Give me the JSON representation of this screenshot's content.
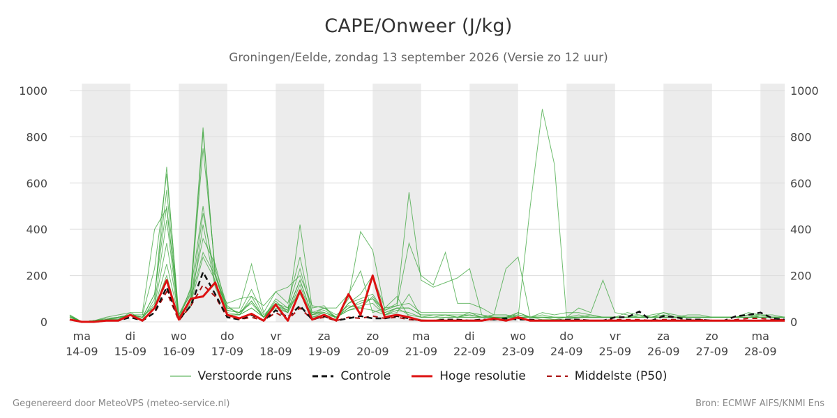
{
  "header": {
    "title": "CAPE/Onweer (J/kg)",
    "subtitle": "Groningen/Eelde, zondag 13 september 2026 (Versie zo 12 uur)"
  },
  "footer": {
    "left": "Gegenereerd door MeteoVPS (meteo-service.nl)",
    "right": "Bron: ECMWF AIFS/KNMI Ens"
  },
  "legend": [
    {
      "label": "Verstoorde runs",
      "color": "#3da63d",
      "style": "thin"
    },
    {
      "label": "Controle",
      "color": "#111111",
      "style": "dashed"
    },
    {
      "label": "Hoge resolutie",
      "color": "#dd1111",
      "style": "thick"
    },
    {
      "label": "Middelste (P50)",
      "color": "#aa1111",
      "style": "dashed-thin"
    }
  ],
  "chart_data": {
    "type": "line",
    "title": "CAPE/Onweer (J/kg)",
    "ylim": [
      0,
      1030
    ],
    "yticks": [
      0,
      200,
      400,
      600,
      800,
      1000
    ],
    "grid": true,
    "legend_position": "bottom",
    "x_range_days": [
      -0.25,
      14.5
    ],
    "x_ticks": [
      {
        "day": "ma",
        "date": "14-09"
      },
      {
        "day": "di",
        "date": "15-09"
      },
      {
        "day": "wo",
        "date": "16-09"
      },
      {
        "day": "do",
        "date": "17-09"
      },
      {
        "day": "vr",
        "date": "18-09"
      },
      {
        "day": "za",
        "date": "19-09"
      },
      {
        "day": "zo",
        "date": "20-09"
      },
      {
        "day": "ma",
        "date": "21-09"
      },
      {
        "day": "di",
        "date": "22-09"
      },
      {
        "day": "wo",
        "date": "23-09"
      },
      {
        "day": "do",
        "date": "24-09"
      },
      {
        "day": "vr",
        "date": "25-09"
      },
      {
        "day": "za",
        "date": "26-09"
      },
      {
        "day": "zo",
        "date": "27-09"
      },
      {
        "day": "ma",
        "date": "28-09"
      }
    ],
    "weekend_shading_days": [
      0,
      2,
      4,
      6,
      8,
      10,
      12,
      14
    ],
    "time_step_days": 0.25,
    "colors": {
      "ensemble": "#3da63d",
      "control": "#111111",
      "hires": "#dd1111",
      "median": "#aa1111",
      "shade": "#ececec",
      "grid": "#dddddd"
    },
    "series": [
      {
        "name": "Hoge resolutie",
        "role": "hires",
        "values": [
          10,
          0,
          0,
          5,
          5,
          30,
          5,
          60,
          180,
          10,
          100,
          110,
          170,
          30,
          15,
          35,
          5,
          75,
          5,
          135,
          10,
          30,
          5,
          120,
          30,
          200,
          20,
          30,
          20,
          5,
          5,
          5,
          5,
          5,
          5,
          15,
          5,
          20,
          5,
          5,
          5,
          5,
          5,
          5,
          5,
          5,
          5,
          5,
          5,
          5,
          5,
          5,
          5,
          5,
          5,
          5,
          5,
          5,
          5,
          5
        ]
      },
      {
        "name": "Controle",
        "role": "control",
        "values": [
          10,
          0,
          0,
          5,
          5,
          20,
          5,
          40,
          150,
          10,
          70,
          215,
          120,
          20,
          10,
          30,
          5,
          50,
          20,
          70,
          10,
          25,
          5,
          15,
          25,
          15,
          15,
          25,
          15,
          5,
          5,
          10,
          10,
          5,
          10,
          10,
          15,
          10,
          10,
          5,
          5,
          10,
          10,
          5,
          5,
          20,
          20,
          45,
          5,
          25,
          20,
          10,
          10,
          5,
          5,
          25,
          30,
          40,
          15,
          10
        ]
      },
      {
        "name": "Middelste (P50)",
        "role": "median",
        "values": [
          10,
          0,
          0,
          5,
          5,
          20,
          5,
          40,
          130,
          5,
          70,
          160,
          110,
          20,
          10,
          20,
          5,
          40,
          10,
          60,
          10,
          20,
          5,
          20,
          15,
          25,
          15,
          20,
          10,
          5,
          5,
          5,
          5,
          5,
          5,
          10,
          5,
          15,
          5,
          5,
          5,
          5,
          5,
          5,
          5,
          10,
          10,
          10,
          5,
          10,
          10,
          5,
          10,
          5,
          5,
          10,
          15,
          15,
          10,
          10
        ]
      },
      {
        "role": "ensemble",
        "values": [
          30,
          0,
          0,
          10,
          10,
          40,
          10,
          100,
          670,
          10,
          150,
          840,
          200,
          60,
          40,
          80,
          20,
          100,
          60,
          120,
          30,
          60,
          20,
          100,
          390,
          310,
          50,
          80,
          560,
          180,
          150,
          170,
          190,
          230,
          30,
          20,
          10,
          40,
          20,
          40,
          30,
          40,
          40,
          30,
          20,
          20,
          20,
          20,
          20,
          30,
          20,
          20,
          20,
          20,
          20,
          20,
          40,
          30,
          20,
          20
        ]
      },
      {
        "role": "ensemble",
        "values": [
          20,
          0,
          5,
          10,
          20,
          30,
          20,
          120,
          570,
          20,
          130,
          750,
          230,
          70,
          30,
          60,
          20,
          90,
          40,
          420,
          60,
          70,
          10,
          80,
          120,
          200,
          60,
          110,
          20,
          10,
          5,
          20,
          20,
          40,
          20,
          30,
          30,
          20,
          20,
          10,
          10,
          10,
          20,
          30,
          20,
          20,
          20,
          20,
          20,
          40,
          30,
          20,
          20,
          20,
          20,
          20,
          30,
          30,
          20,
          20
        ]
      },
      {
        "role": "ensemble",
        "values": [
          25,
          0,
          5,
          20,
          30,
          40,
          40,
          400,
          490,
          30,
          140,
          500,
          160,
          80,
          100,
          110,
          70,
          130,
          150,
          200,
          70,
          60,
          60,
          120,
          220,
          40,
          60,
          70,
          340,
          200,
          160,
          300,
          80,
          80,
          60,
          30,
          30,
          20,
          500,
          920,
          680,
          20,
          60,
          40,
          180,
          40,
          30,
          20,
          30,
          40,
          20,
          30,
          30,
          20,
          20,
          20,
          30,
          20,
          20,
          20
        ]
      },
      {
        "role": "ensemble",
        "values": [
          20,
          0,
          5,
          10,
          20,
          30,
          20,
          80,
          440,
          10,
          110,
          360,
          250,
          50,
          40,
          140,
          30,
          80,
          60,
          230,
          40,
          60,
          30,
          70,
          60,
          110,
          40,
          60,
          30,
          20,
          20,
          30,
          20,
          20,
          20,
          30,
          230,
          280,
          20,
          20,
          10,
          20,
          30,
          20,
          20,
          20,
          20,
          30,
          20,
          30,
          20,
          20,
          20,
          20,
          20,
          20,
          20,
          30,
          30,
          20
        ]
      },
      {
        "role": "ensemble",
        "values": [
          20,
          0,
          5,
          10,
          15,
          30,
          20,
          70,
          340,
          20,
          100,
          300,
          200,
          40,
          30,
          110,
          20,
          70,
          50,
          180,
          30,
          40,
          20,
          60,
          90,
          100,
          30,
          50,
          40,
          20,
          30,
          30,
          20,
          30,
          20,
          20,
          20,
          40,
          20,
          30,
          20,
          20,
          20,
          20,
          20,
          20,
          40,
          30,
          20,
          20,
          20,
          20,
          20,
          20,
          20,
          20,
          30,
          20,
          20,
          20
        ]
      },
      {
        "role": "ensemble",
        "values": [
          25,
          0,
          5,
          10,
          20,
          30,
          30,
          60,
          250,
          20,
          80,
          280,
          180,
          30,
          30,
          90,
          20,
          60,
          40,
          160,
          20,
          30,
          20,
          50,
          70,
          80,
          30,
          40,
          120,
          20,
          20,
          20,
          20,
          20,
          20,
          20,
          20,
          20,
          20,
          20,
          20,
          20,
          20,
          20,
          20,
          20,
          20,
          20,
          20,
          20,
          20,
          20,
          20,
          20,
          20,
          20,
          20,
          20,
          20,
          20
        ]
      },
      {
        "role": "ensemble",
        "values": [
          20,
          0,
          5,
          15,
          20,
          30,
          30,
          230,
          640,
          30,
          120,
          820,
          210,
          60,
          60,
          250,
          40,
          130,
          80,
          280,
          40,
          40,
          20,
          60,
          80,
          100,
          50,
          70,
          80,
          40,
          40,
          40,
          40,
          40,
          30,
          20,
          20,
          30,
          20,
          20,
          20,
          20,
          20,
          20,
          20,
          20,
          20,
          20,
          20,
          20,
          20,
          20,
          20,
          20,
          20,
          20,
          20,
          20,
          20,
          20
        ]
      },
      {
        "role": "ensemble",
        "values": [
          25,
          0,
          5,
          10,
          10,
          30,
          10,
          60,
          200,
          10,
          70,
          420,
          150,
          30,
          30,
          60,
          20,
          70,
          40,
          140,
          20,
          40,
          20,
          50,
          60,
          50,
          30,
          60,
          60,
          30,
          30,
          30,
          20,
          30,
          20,
          20,
          20,
          30,
          20,
          20,
          20,
          20,
          20,
          20,
          20,
          20,
          20,
          20,
          20,
          20,
          20,
          20,
          20,
          20,
          20,
          20,
          20,
          20,
          20,
          20
        ]
      },
      {
        "role": "ensemble",
        "values": [
          30,
          0,
          5,
          10,
          20,
          30,
          20,
          120,
          500,
          20,
          100,
          470,
          200,
          50,
          40,
          90,
          20,
          80,
          50,
          180,
          30,
          50,
          20,
          80,
          100,
          120,
          40,
          60,
          60,
          30,
          30,
          30,
          30,
          30,
          20,
          20,
          20,
          20,
          20,
          20,
          20,
          20,
          20,
          20,
          20,
          20,
          20,
          20,
          20,
          20,
          20,
          20,
          20,
          20,
          20,
          20,
          20,
          20,
          20,
          20
        ]
      }
    ]
  }
}
